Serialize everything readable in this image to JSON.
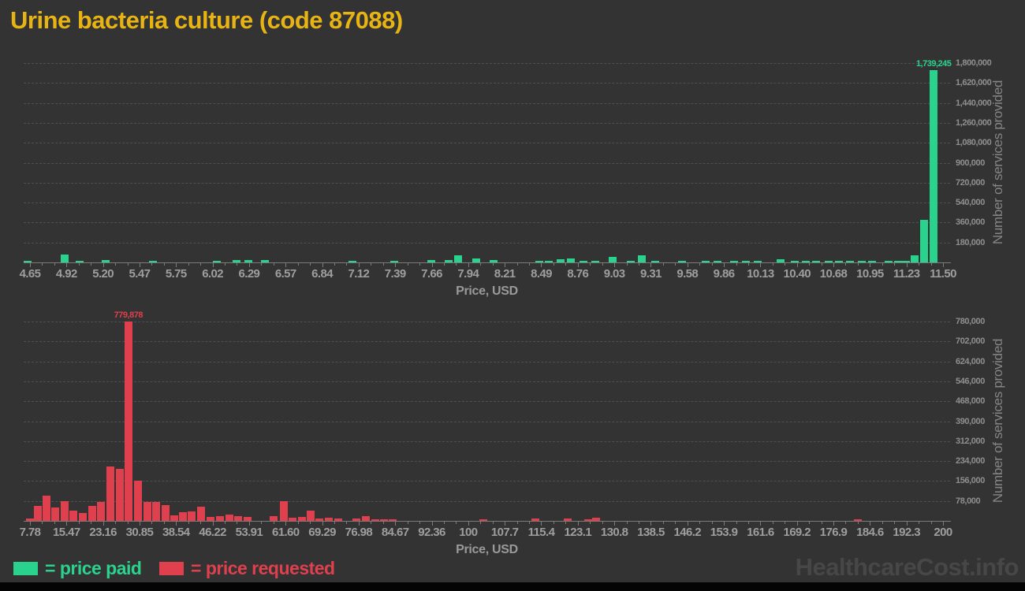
{
  "page": {
    "title": "Urine bacteria culture (code 87088)",
    "watermark": "HealthcareCost.info",
    "background_color": "#333333",
    "title_color": "#e8b414"
  },
  "legend": {
    "paid_label": "= price paid",
    "requested_label": "= price requested",
    "paid_color": "#2ad38d",
    "requested_color": "#e0404d"
  },
  "chart_data": [
    {
      "type": "bar",
      "name": "price-paid-histogram",
      "series_name": "price paid",
      "color": "#2ad38d",
      "xlabel": "Price, USD",
      "ylabel": "Number of services provided",
      "grid": "horizontal-dashed",
      "x_min": 4.65,
      "x_max": 11.5,
      "y_max": 1800000,
      "x_ticks": [
        "4.65",
        "4.92",
        "5.20",
        "5.47",
        "5.75",
        "6.02",
        "6.29",
        "6.57",
        "6.84",
        "7.12",
        "7.39",
        "7.66",
        "7.94",
        "8.21",
        "8.49",
        "8.76",
        "9.03",
        "9.31",
        "9.58",
        "9.86",
        "10.13",
        "10.40",
        "10.68",
        "10.95",
        "11.23",
        "11.50"
      ],
      "y_ticks": [
        "180,000",
        "360,000",
        "540,000",
        "720,000",
        "900,000",
        "1,080,000",
        "1,260,000",
        "1,440,000",
        "1,620,000",
        "1,800,000"
      ],
      "peak_label": "1,739,245",
      "bars": [
        [
          4.63,
          14000
        ],
        [
          4.91,
          70000
        ],
        [
          5.02,
          15000
        ],
        [
          5.22,
          18000
        ],
        [
          5.57,
          14000
        ],
        [
          6.05,
          14000
        ],
        [
          6.2,
          20000
        ],
        [
          6.29,
          20000
        ],
        [
          6.41,
          20000
        ],
        [
          7.07,
          14000
        ],
        [
          7.38,
          14000
        ],
        [
          7.66,
          20000
        ],
        [
          7.79,
          20000
        ],
        [
          7.86,
          64000
        ],
        [
          8.0,
          35000
        ],
        [
          8.13,
          20000
        ],
        [
          8.47,
          14000
        ],
        [
          8.54,
          14000
        ],
        [
          8.63,
          28000
        ],
        [
          8.71,
          36000
        ],
        [
          8.8,
          14000
        ],
        [
          8.89,
          14000
        ],
        [
          9.02,
          50000
        ],
        [
          9.16,
          14000
        ],
        [
          9.24,
          64000
        ],
        [
          9.34,
          14000
        ],
        [
          9.54,
          14000
        ],
        [
          9.72,
          14000
        ],
        [
          9.81,
          14000
        ],
        [
          9.93,
          14000
        ],
        [
          10.02,
          14000
        ],
        [
          10.11,
          14000
        ],
        [
          10.28,
          28000
        ],
        [
          10.39,
          14000
        ],
        [
          10.47,
          14000
        ],
        [
          10.55,
          14000
        ],
        [
          10.64,
          14000
        ],
        [
          10.72,
          14000
        ],
        [
          10.8,
          14000
        ],
        [
          10.89,
          14000
        ],
        [
          10.97,
          14000
        ],
        [
          11.09,
          14000
        ],
        [
          11.16,
          14000
        ],
        [
          11.22,
          14000
        ],
        [
          11.29,
          63000
        ],
        [
          11.36,
          385000
        ],
        [
          11.43,
          1739245
        ]
      ]
    },
    {
      "type": "bar",
      "name": "price-requested-histogram",
      "series_name": "price requested",
      "color": "#e0404d",
      "xlabel": "Price, USD",
      "ylabel": "Number of services provided",
      "grid": "horizontal-dashed",
      "x_min": 7.78,
      "x_max": 200,
      "y_max": 780000,
      "x_ticks": [
        "7.78",
        "15.47",
        "23.16",
        "30.85",
        "38.54",
        "46.22",
        "53.91",
        "61.60",
        "69.29",
        "76.98",
        "84.67",
        "92.36",
        "100",
        "107.7",
        "115.4",
        "123.1",
        "130.8",
        "138.5",
        "146.2",
        "153.9",
        "161.6",
        "169.2",
        "176.9",
        "184.6",
        "192.3",
        "200"
      ],
      "y_ticks": [
        "78,000",
        "156,000",
        "234,000",
        "312,000",
        "390,000",
        "468,000",
        "546,000",
        "624,000",
        "702,000",
        "780,000"
      ],
      "peak_label": "779,878",
      "bars": [
        [
          7.7,
          8000
        ],
        [
          9.4,
          58000
        ],
        [
          11.3,
          100000
        ],
        [
          13.1,
          52000
        ],
        [
          15.1,
          78000
        ],
        [
          16.9,
          40000
        ],
        [
          18.9,
          31000
        ],
        [
          20.9,
          58000
        ],
        [
          22.7,
          74000
        ],
        [
          24.7,
          213000
        ],
        [
          26.7,
          204000
        ],
        [
          28.5,
          779878
        ],
        [
          30.5,
          157000
        ],
        [
          32.5,
          74000
        ],
        [
          34.3,
          74000
        ],
        [
          36.3,
          62000
        ],
        [
          38.2,
          22000
        ],
        [
          40.0,
          34000
        ],
        [
          41.8,
          37000
        ],
        [
          43.8,
          55000
        ],
        [
          45.8,
          15000
        ],
        [
          47.8,
          18000
        ],
        [
          49.8,
          25000
        ],
        [
          51.6,
          18000
        ],
        [
          53.6,
          15000
        ],
        [
          59.1,
          18000
        ],
        [
          61.2,
          77000
        ],
        [
          63.1,
          12000
        ],
        [
          65.1,
          15000
        ],
        [
          66.9,
          40000
        ],
        [
          68.7,
          9000
        ],
        [
          70.7,
          12000
        ],
        [
          72.7,
          9000
        ],
        [
          76.5,
          9000
        ],
        [
          78.5,
          18000
        ],
        [
          80.5,
          6000
        ],
        [
          82.3,
          5000
        ],
        [
          84.1,
          6000
        ],
        [
          103.2,
          6000
        ],
        [
          114.2,
          8000
        ],
        [
          121.0,
          8000
        ],
        [
          125.3,
          7000
        ],
        [
          127.0,
          12000
        ],
        [
          182.1,
          7000
        ]
      ]
    }
  ]
}
